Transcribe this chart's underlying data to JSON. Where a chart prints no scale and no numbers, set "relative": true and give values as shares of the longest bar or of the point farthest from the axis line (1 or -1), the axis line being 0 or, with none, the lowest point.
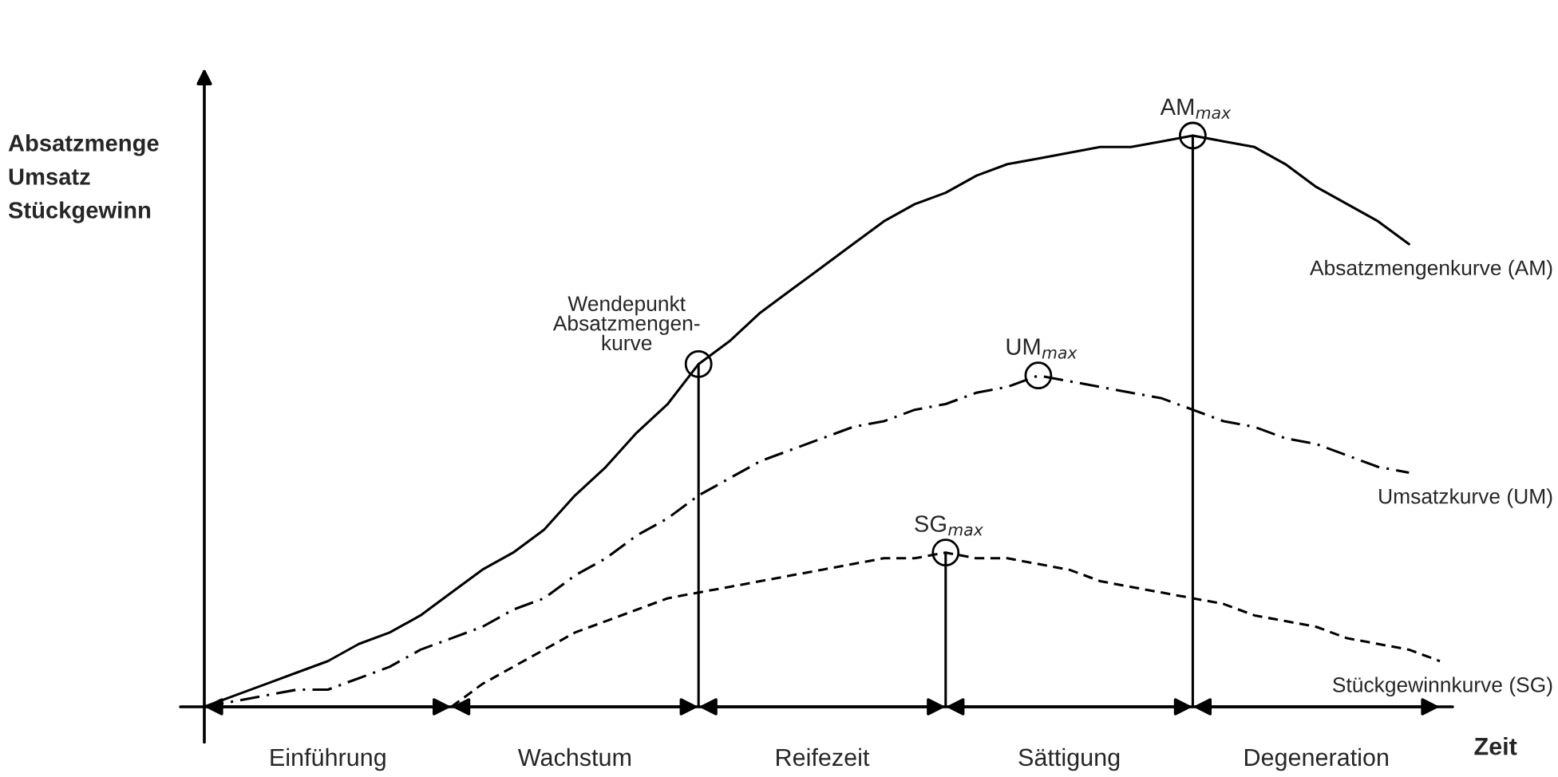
{
  "chart_data": {
    "type": "line",
    "relative": true,
    "xlabel": "Zeit",
    "ylabel": "Absatzmenge\nUmsatz\nStückgewinn",
    "legend": "right",
    "categories": [
      null,
      null,
      null,
      null,
      null,
      null,
      null,
      null,
      null,
      null,
      null,
      null,
      null,
      null,
      null,
      null,
      null,
      null,
      null,
      null,
      null,
      null,
      null,
      null,
      null,
      null,
      null,
      null,
      null,
      null,
      null,
      null,
      null,
      null,
      null,
      null,
      null,
      null,
      null,
      null,
      null
    ],
    "series": [
      {
        "name": "Absatzmengenkurve (AM)",
        "color": "#000000",
        "line_style": "solid",
        "values": [
          0,
          0.02,
          0.04,
          0.06,
          0.08,
          0.11,
          0.13,
          0.16,
          0.2,
          0.24,
          0.27,
          0.31,
          0.37,
          0.42,
          0.48,
          0.53,
          0.6,
          0.64,
          0.69,
          0.73,
          0.77,
          0.81,
          0.85,
          0.88,
          0.9,
          0.93,
          0.95,
          0.96,
          0.97,
          0.98,
          0.98,
          0.99,
          1,
          0.99,
          0.98,
          0.95,
          0.91,
          0.88,
          0.85,
          0.81,
          null
        ]
      },
      {
        "name": "Umsatzkurve (UM)",
        "color": "#000000",
        "line_style": "dashdot",
        "values": [
          0,
          0.01,
          0.02,
          0.03,
          0.03,
          0.05,
          0.07,
          0.1,
          0.12,
          0.14,
          0.17,
          0.19,
          0.23,
          0.26,
          0.3,
          0.33,
          0.37,
          0.4,
          0.43,
          0.45,
          0.47,
          0.49,
          0.5,
          0.52,
          0.53,
          0.55,
          0.56,
          0.58,
          0.57,
          0.56,
          0.55,
          0.54,
          0.52,
          0.5,
          0.49,
          0.47,
          0.46,
          0.44,
          0.42,
          0.41,
          null
        ]
      },
      {
        "name": "Stückgewinnkurve (SG)",
        "color": "#000000",
        "line_style": "dashed",
        "values": [
          null,
          null,
          null,
          null,
          null,
          null,
          null,
          null,
          0,
          0.04,
          0.07,
          0.1,
          0.13,
          0.15,
          0.17,
          0.19,
          0.2,
          0.21,
          0.22,
          0.23,
          0.24,
          0.25,
          0.26,
          0.26,
          0.27,
          0.26,
          0.26,
          0.25,
          0.24,
          0.22,
          0.21,
          0.2,
          0.19,
          0.18,
          0.16,
          0.15,
          0.14,
          0.12,
          0.11,
          0.1,
          0.08
        ]
      }
    ],
    "annotations": [
      "AM$_{max}$",
      "UM$_{max}$",
      "SG$_{max}$",
      "Wendepunkt\nAbsatzmengen-\nkurve",
      "Einführung",
      "Wachstum",
      "Reifezeit",
      "Sättigung",
      "Degeneration"
    ]
  }
}
